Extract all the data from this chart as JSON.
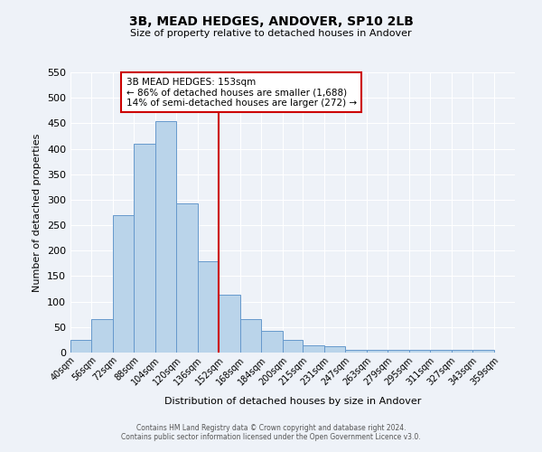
{
  "title": "3B, MEAD HEDGES, ANDOVER, SP10 2LB",
  "subtitle": "Size of property relative to detached houses in Andover",
  "xlabel": "Distribution of detached houses by size in Andover",
  "ylabel": "Number of detached properties",
  "bar_color": "#bad4ea",
  "bar_edge_color": "#6699cc",
  "bar_left_edges": [
    40,
    56,
    72,
    88,
    104,
    120,
    136,
    152,
    168,
    184,
    200,
    215,
    231,
    247,
    263,
    279,
    295,
    311,
    327,
    343
  ],
  "bar_widths": [
    16,
    16,
    16,
    16,
    16,
    16,
    16,
    16,
    16,
    16,
    15,
    16,
    16,
    16,
    16,
    16,
    16,
    16,
    16,
    16
  ],
  "bar_heights": [
    25,
    65,
    270,
    410,
    455,
    293,
    180,
    113,
    65,
    43,
    25,
    15,
    12,
    5,
    5,
    5,
    5,
    5,
    5,
    5
  ],
  "last_tick": 359,
  "vline_x": 152,
  "vline_color": "#cc0000",
  "annotation_line1": "3B MEAD HEDGES: 153sqm",
  "annotation_line2": "← 86% of detached houses are smaller (1,688)",
  "annotation_line3": "14% of semi-detached houses are larger (272) →",
  "ylim": [
    0,
    550
  ],
  "yticks": [
    0,
    50,
    100,
    150,
    200,
    250,
    300,
    350,
    400,
    450,
    500,
    550
  ],
  "xlim_min": 40,
  "xlim_max": 375,
  "bg_color": "#eef2f8",
  "grid_color": "#ffffff",
  "footer_line1": "Contains HM Land Registry data © Crown copyright and database right 2024.",
  "footer_line2": "Contains public sector information licensed under the Open Government Licence v3.0."
}
